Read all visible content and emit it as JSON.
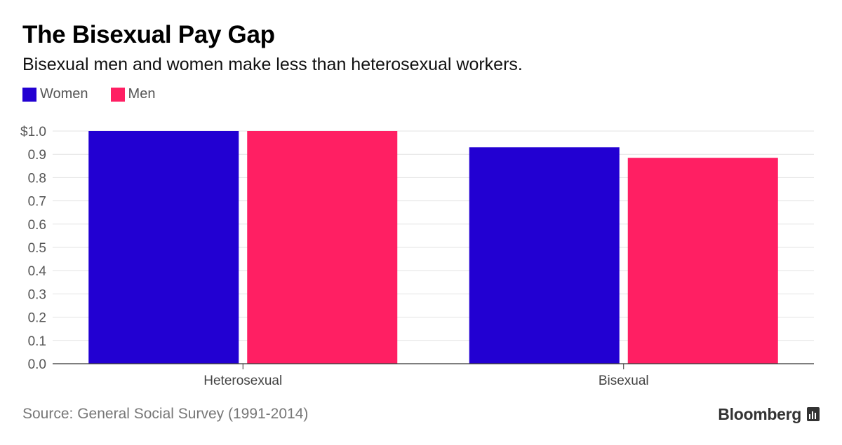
{
  "header": {
    "title": "The Bisexual Pay Gap",
    "subtitle": "Bisexual men and women make less than heterosexual workers."
  },
  "legend": [
    {
      "label": "Women",
      "color": "#2200d2"
    },
    {
      "label": "Men",
      "color": "#ff1f63"
    }
  ],
  "chart_data": {
    "type": "bar",
    "categories": [
      "Heterosexual",
      "Bisexual"
    ],
    "series": [
      {
        "name": "Women",
        "values": [
          1.0,
          0.93
        ],
        "color": "#2200d2"
      },
      {
        "name": "Men",
        "values": [
          1.0,
          0.885
        ],
        "color": "#ff1f63"
      }
    ],
    "ylim": [
      0,
      1.0
    ],
    "y_ticks": [
      "0.0",
      "0.1",
      "0.2",
      "0.3",
      "0.4",
      "0.5",
      "0.6",
      "0.7",
      "0.8",
      "0.9",
      "$1.0"
    ],
    "grid": true,
    "legend_placement": "top-left"
  },
  "footer": {
    "source": "Source: General Social Survey (1991-2014)",
    "brand": "Bloomberg",
    "brand_icon": "bloomberg-chart-icon"
  }
}
